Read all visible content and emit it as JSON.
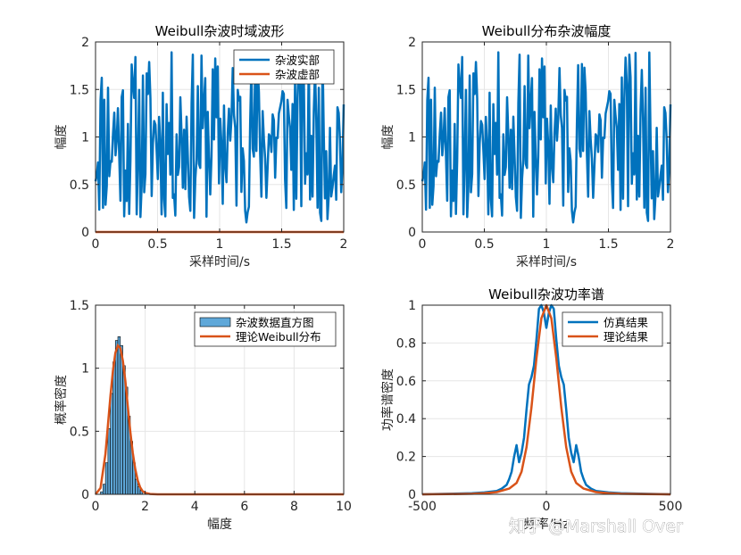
{
  "chart_data": [
    {
      "type": "line",
      "title": "Weibull杂波时域波形",
      "xlabel": "采样时间/s",
      "ylabel": "幅度",
      "xlim": [
        0,
        2
      ],
      "ylim": [
        0,
        2
      ],
      "xticks": [
        "0",
        "0.5",
        "1",
        "1.5",
        "2"
      ],
      "yticks": [
        "0",
        "0.5",
        "1",
        "1.5",
        "2"
      ],
      "grid": true,
      "legend_position": "top-right",
      "series": [
        {
          "name": "杂波实部",
          "color": "#0072BD",
          "kind": "noise",
          "seed": 11,
          "n": 200,
          "x_range": [
            0,
            2
          ],
          "value_range": [
            0.1,
            1.9
          ]
        },
        {
          "name": "杂波虚部",
          "color": "#D95319",
          "kind": "constant",
          "value": 0
        }
      ]
    },
    {
      "type": "line",
      "title": "Weibull分布杂波幅度",
      "xlabel": "采样时间/s",
      "ylabel": "幅度",
      "xlim": [
        0,
        2
      ],
      "ylim": [
        0,
        2
      ],
      "xticks": [
        "0",
        "0.5",
        "1",
        "1.5",
        "2"
      ],
      "yticks": [
        "0",
        "0.5",
        "1",
        "1.5",
        "2"
      ],
      "grid": true,
      "series": [
        {
          "color": "#0072BD",
          "kind": "noise",
          "seed": 11,
          "n": 200,
          "x_range": [
            0,
            2
          ],
          "value_range": [
            0.1,
            1.9
          ]
        }
      ]
    },
    {
      "type": "bar",
      "title": "",
      "xlabel": "幅度",
      "ylabel": "概率密度",
      "xlim": [
        0,
        10
      ],
      "ylim": [
        0,
        1.5
      ],
      "xticks": [
        "0",
        "2",
        "4",
        "6",
        "8",
        "10"
      ],
      "yticks": [
        "0",
        "0.5",
        "1",
        "1.5"
      ],
      "grid": true,
      "legend_position": "top-right",
      "histogram": {
        "name": "杂波数据直方图",
        "color": "#4DBEEE",
        "bin_width": 0.1,
        "bin_starts": [
          0.2,
          0.3,
          0.4,
          0.5,
          0.6,
          0.7,
          0.8,
          0.9,
          1.0,
          1.1,
          1.2,
          1.3,
          1.4,
          1.5,
          1.6,
          1.7,
          1.8
        ],
        "values": [
          0.02,
          0.08,
          0.25,
          0.52,
          0.8,
          1.05,
          1.22,
          1.25,
          1.18,
          1.02,
          0.85,
          0.62,
          0.42,
          0.25,
          0.12,
          0.06,
          0.03
        ]
      },
      "curve": {
        "name": "理论Weibull分布",
        "color": "#D95319",
        "x": [
          0,
          0.2,
          0.4,
          0.5,
          0.6,
          0.7,
          0.8,
          0.9,
          1.0,
          1.1,
          1.2,
          1.3,
          1.4,
          1.5,
          1.6,
          1.7,
          1.8,
          1.9,
          2.0,
          2.2,
          2.5,
          3,
          4,
          6,
          8,
          10
        ],
        "y": [
          0,
          0.05,
          0.32,
          0.55,
          0.78,
          0.98,
          1.12,
          1.18,
          1.16,
          1.06,
          0.9,
          0.7,
          0.5,
          0.33,
          0.2,
          0.11,
          0.055,
          0.025,
          0.012,
          0.003,
          0,
          0,
          0,
          0,
          0,
          0
        ]
      }
    },
    {
      "type": "line",
      "title": "Weibull杂波功率谱",
      "xlabel": "频率/Hz",
      "ylabel": "功率谱密度",
      "xlim": [
        -500,
        500
      ],
      "ylim": [
        0,
        1
      ],
      "xticks": [
        "-500",
        "0",
        "500"
      ],
      "yticks": [
        "0",
        "0.2",
        "0.4",
        "0.6",
        "0.8",
        "1"
      ],
      "grid": true,
      "legend_position": "top-right",
      "series": [
        {
          "name": "仿真结果",
          "color": "#0072BD",
          "x": [
            -500,
            -400,
            -300,
            -250,
            -200,
            -180,
            -160,
            -150,
            -140,
            -130,
            -120,
            -110,
            -100,
            -90,
            -80,
            -70,
            -60,
            -50,
            -40,
            -30,
            -20,
            -10,
            0,
            10,
            20,
            30,
            40,
            50,
            60,
            70,
            80,
            90,
            100,
            110,
            120,
            130,
            140,
            150,
            160,
            180,
            200,
            250,
            300,
            400,
            500
          ],
          "y": [
            0,
            0.003,
            0.006,
            0.01,
            0.018,
            0.03,
            0.05,
            0.08,
            0.12,
            0.2,
            0.26,
            0.17,
            0.22,
            0.3,
            0.45,
            0.58,
            0.62,
            0.68,
            0.82,
            0.98,
            1.0,
            0.96,
            0.88,
            0.96,
            1.0,
            0.98,
            0.82,
            0.68,
            0.62,
            0.58,
            0.45,
            0.3,
            0.22,
            0.17,
            0.26,
            0.2,
            0.12,
            0.08,
            0.05,
            0.03,
            0.018,
            0.01,
            0.006,
            0.003,
            0
          ]
        },
        {
          "name": "理论结果",
          "color": "#D95319",
          "x": [
            -500,
            -400,
            -300,
            -250,
            -200,
            -150,
            -120,
            -100,
            -80,
            -60,
            -40,
            -20,
            0,
            20,
            40,
            60,
            80,
            100,
            120,
            150,
            200,
            250,
            300,
            400,
            500
          ],
          "y": [
            0,
            0.001,
            0.003,
            0.006,
            0.012,
            0.03,
            0.06,
            0.12,
            0.25,
            0.46,
            0.72,
            0.93,
            1.0,
            0.93,
            0.72,
            0.46,
            0.25,
            0.12,
            0.06,
            0.03,
            0.012,
            0.006,
            0.003,
            0.001,
            0
          ]
        }
      ]
    }
  ],
  "watermark": "知乎 @Marshall Over"
}
